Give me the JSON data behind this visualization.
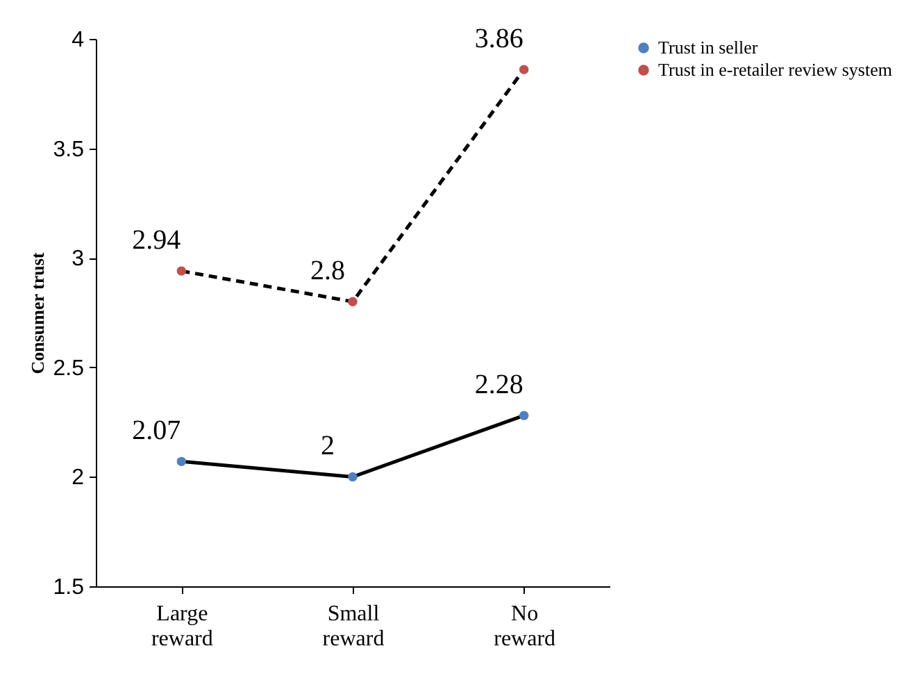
{
  "chart_data": {
    "type": "line",
    "ylabel": "Consumer trust",
    "categories": [
      "Large reward",
      "Small reward",
      "No reward"
    ],
    "series": [
      {
        "name": "Trust in seller",
        "color": "#4f81bd",
        "line_style": "solid",
        "values": [
          2.07,
          2,
          2.28
        ]
      },
      {
        "name": "Trust in e-retailer review system",
        "color": "#c0504d",
        "line_style": "dashed",
        "values": [
          2.94,
          2.8,
          3.86
        ]
      }
    ],
    "ylim": [
      1.5,
      4
    ],
    "yticks": [
      1.5,
      2,
      2.5,
      3,
      3.5,
      4
    ],
    "grid": false,
    "legend": "right",
    "marker": "circle",
    "data_labels": true
  }
}
